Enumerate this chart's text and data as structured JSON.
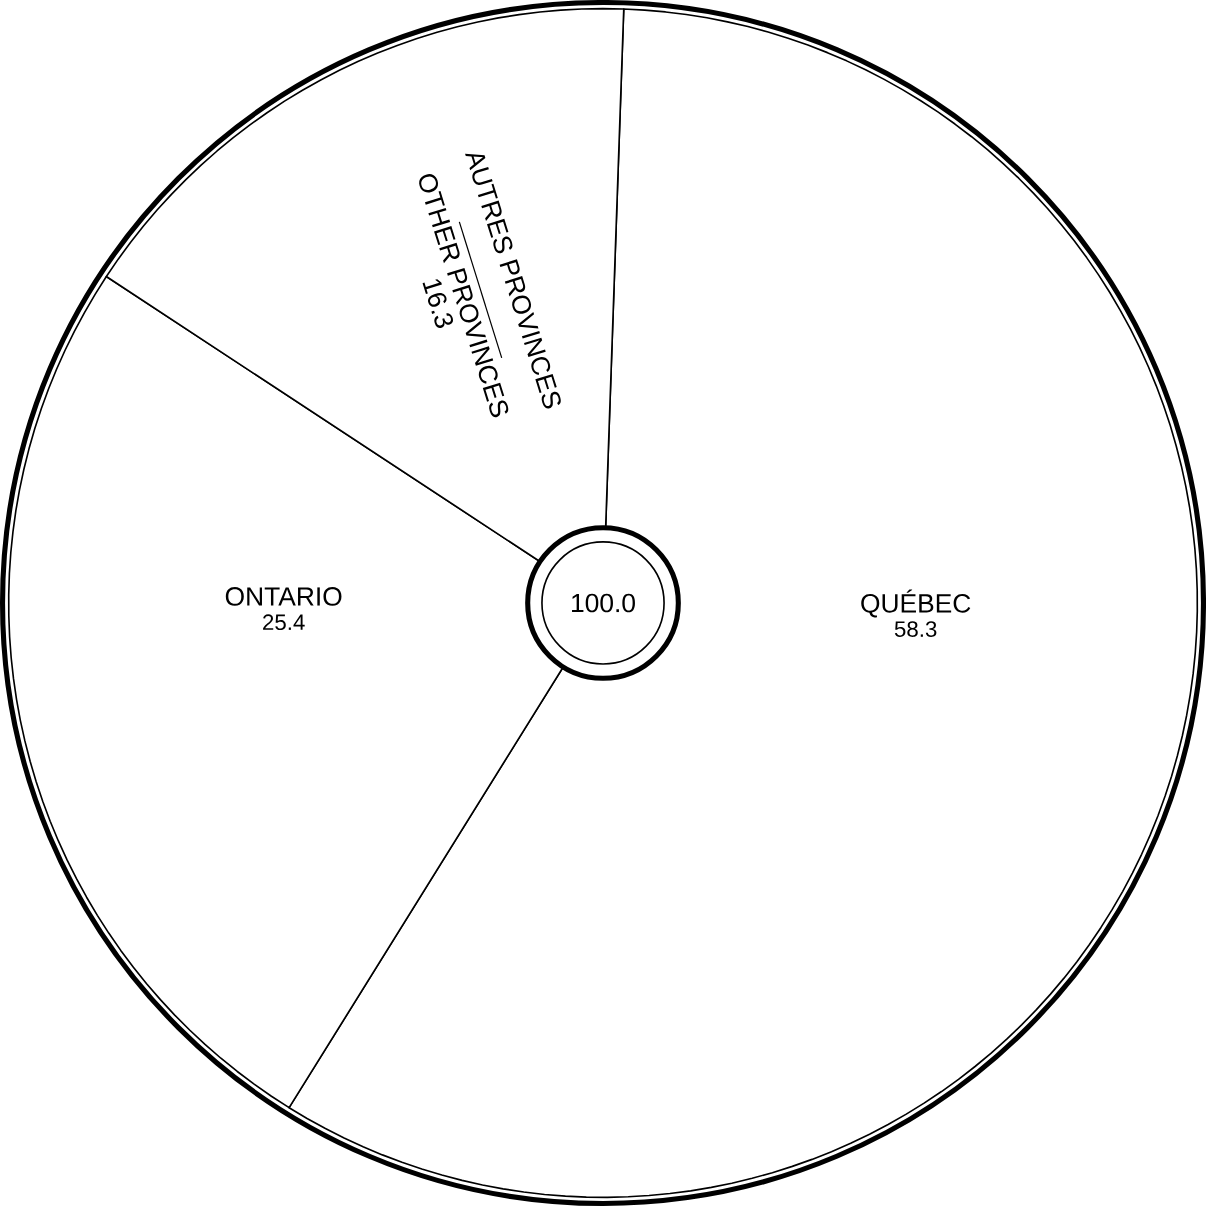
{
  "chart_data": {
    "type": "pie",
    "categories": [
      "QUÉBEC",
      "ONTARIO",
      "OTHER PROVINCES"
    ],
    "values": [
      58.3,
      25.4,
      16.3
    ],
    "colors": [
      "#ffffff",
      "#ffffff",
      "#ffffff"
    ],
    "value_labels": [
      "58.3",
      "25.4",
      "16.3"
    ],
    "annotations": [
      "100.0",
      "AUTRES PROVINCES"
    ]
  }
}
